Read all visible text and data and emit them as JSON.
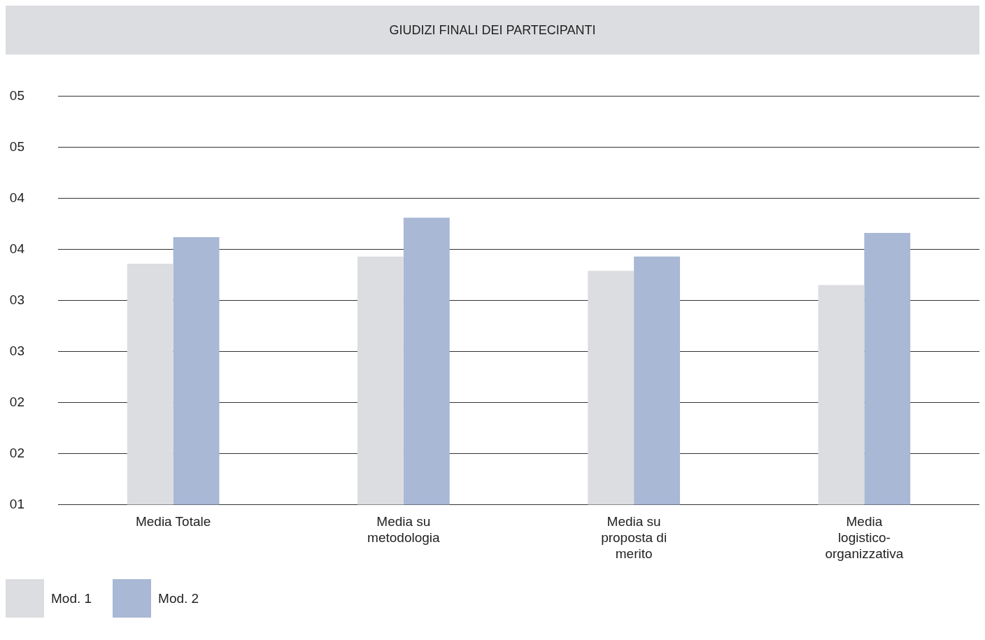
{
  "chart_data": {
    "type": "bar",
    "title": "GIUDIZI FINALI DEI PARTECIPANTI",
    "categories": [
      "Media Totale",
      "Media su metodologia",
      "Media su proposta di merito",
      "Media logistico-organizzativa"
    ],
    "series": [
      {
        "name": "Mod. 1",
        "color": "#dcdde0",
        "values": [
          3.36,
          3.43,
          3.29,
          3.15
        ]
      },
      {
        "name": "Mod. 2",
        "color": "#a8b8d5",
        "values": [
          3.62,
          3.81,
          3.43,
          3.66
        ]
      }
    ],
    "ylim": [
      1,
      5
    ],
    "yticks": [
      {
        "value": 1,
        "label": "01"
      },
      {
        "value": 1.5,
        "label": "02"
      },
      {
        "value": 2,
        "label": "02"
      },
      {
        "value": 2.5,
        "label": "03"
      },
      {
        "value": 3,
        "label": "03"
      },
      {
        "value": 3.5,
        "label": "04"
      },
      {
        "value": 4,
        "label": "04"
      },
      {
        "value": 4.5,
        "label": "05"
      },
      {
        "value": 5,
        "label": "05"
      }
    ],
    "grid": "y",
    "legend": "bottom left"
  }
}
